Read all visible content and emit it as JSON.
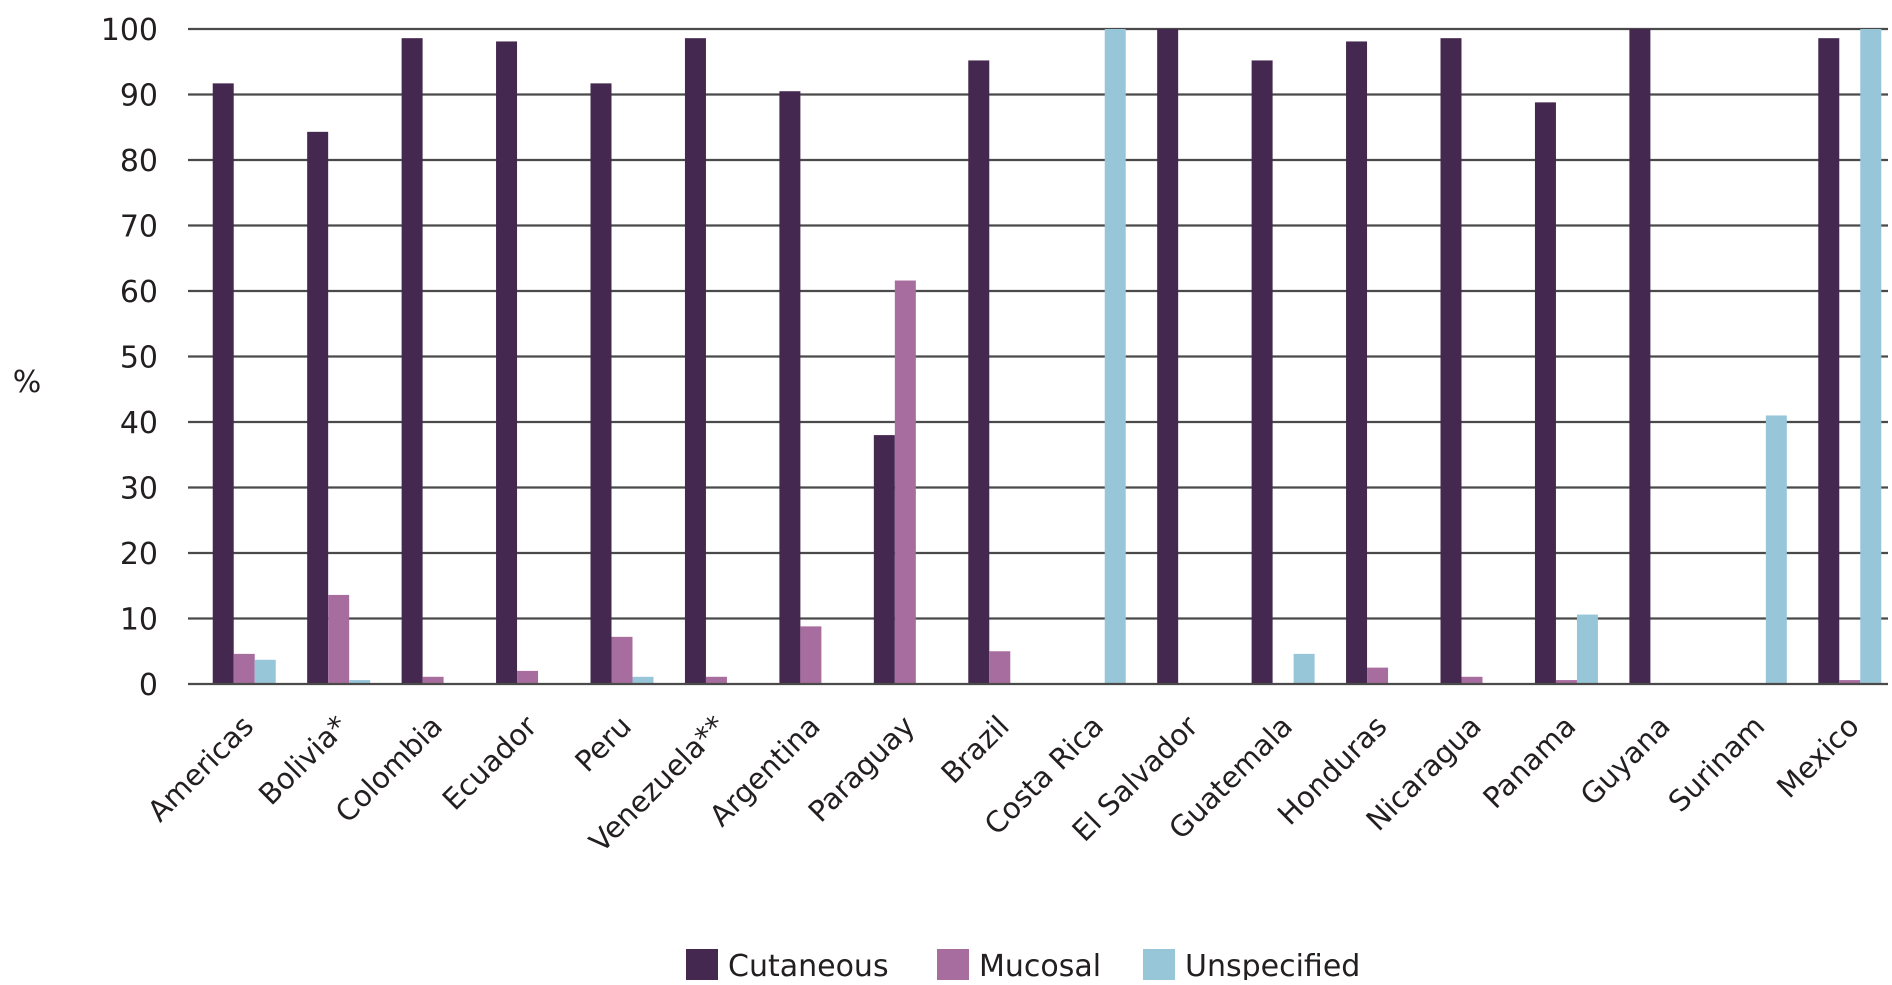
{
  "chart_data": {
    "type": "bar",
    "title": "",
    "xlabel": "",
    "ylabel": "%",
    "ylim": [
      0,
      100
    ],
    "yticks": [
      0,
      10,
      20,
      30,
      40,
      50,
      60,
      70,
      80,
      90,
      100
    ],
    "grid": true,
    "legend_position": "bottom",
    "categories": [
      "Americas",
      "Bolivia*",
      "Colombia",
      "Ecuador",
      "Peru",
      "Venezuela**",
      "Argentina",
      "Paraguay",
      "Brazil",
      "Costa Rica",
      "El Salvador",
      "Guatemala",
      "Honduras",
      "Nicaragua",
      "Panama",
      "Guyana",
      "Surinam",
      "Mexico"
    ],
    "series": [
      {
        "name": "Cutaneous",
        "color": "#45284f",
        "values": [
          91.7,
          84.3,
          98.6,
          98.1,
          91.7,
          98.6,
          90.5,
          38.0,
          95.2,
          0,
          100,
          95.2,
          98.1,
          98.6,
          88.8,
          100,
          0,
          98.6
        ]
      },
      {
        "name": "Mucosal",
        "color": "#a86d9f",
        "values": [
          4.6,
          13.6,
          1.1,
          2.0,
          7.2,
          1.1,
          8.8,
          61.6,
          5.0,
          0,
          0,
          0,
          2.5,
          1.1,
          0.6,
          0,
          0,
          0.6
        ]
      },
      {
        "name": "Unspecified",
        "color": "#98c6d9",
        "values": [
          3.7,
          0.6,
          0,
          0,
          1.1,
          0,
          0,
          0,
          0,
          100,
          0,
          4.6,
          0,
          0,
          10.6,
          0,
          41.0,
          100
        ]
      }
    ]
  }
}
